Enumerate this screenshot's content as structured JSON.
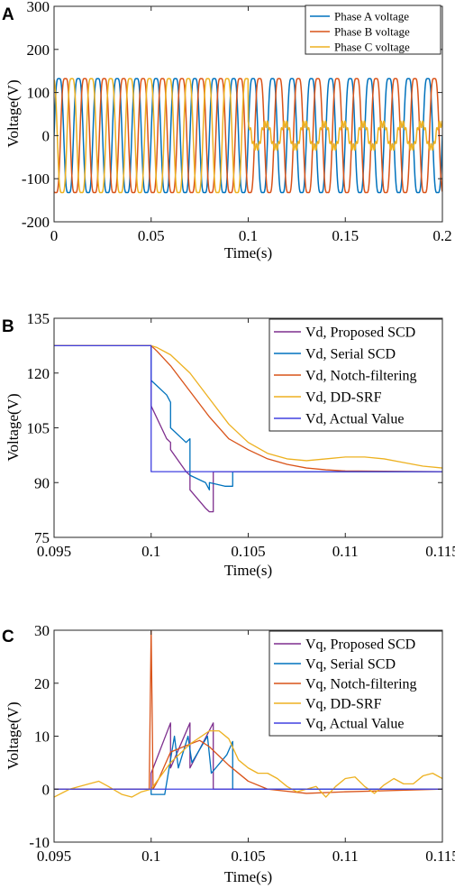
{
  "colors": {
    "phase_a": "#0072BD",
    "phase_b": "#D95319",
    "phase_c": "#EDB120",
    "proposed": "#7E2F8E",
    "serial": "#0072BD",
    "notch": "#D95319",
    "ddsrf": "#EDB120",
    "actual": "#4040E0"
  },
  "panels": [
    {
      "letter": "A",
      "ylabel": "Voltage(V)",
      "xlabel": "Time(s)",
      "xticks": [
        "0",
        "0.05",
        "0.1",
        "0.15",
        "0.2"
      ],
      "yticks": [
        "-200",
        "-100",
        "0",
        "100",
        "200",
        "300"
      ],
      "legend": [
        "Phase A voltage",
        "Phase B voltage",
        "Phase C voltage"
      ]
    },
    {
      "letter": "B",
      "ylabel": "Voltage(V)",
      "xlabel": "Time(s)",
      "xticks": [
        "0.095",
        "0.1",
        "0.105",
        "0.11",
        "0.115"
      ],
      "yticks": [
        "75",
        "90",
        "105",
        "120",
        "135"
      ],
      "legend": [
        "Vd, Proposed SCD",
        "Vd, Serial SCD",
        "Vd, Notch-filtering",
        "Vd, DD-SRF",
        "Vd, Actual Value"
      ]
    },
    {
      "letter": "C",
      "ylabel": "Voltage(V)",
      "xlabel": "Time(s)",
      "xticks": [
        "0.095",
        "0.1",
        "0.105",
        "0.11",
        "0.115"
      ],
      "yticks": [
        "-10",
        "0",
        "10",
        "20",
        "30"
      ],
      "legend": [
        "Vq, Proposed SCD",
        "Vq, Serial SCD",
        "Vq, Notch-filtering",
        "Vq, DD-SRF",
        "Vq, Actual Value"
      ]
    }
  ],
  "chart_data": [
    {
      "type": "line",
      "xlim": [
        0,
        0.2
      ],
      "ylim": [
        -200,
        300
      ],
      "grid": false,
      "legend_position": "top-right",
      "frequency_hz": 100,
      "series": [
        {
          "name": "Phase A voltage",
          "amplitude_before": 150,
          "amplitude_after": 150,
          "phase_deg": 0
        },
        {
          "name": "Phase B voltage",
          "amplitude_before": 150,
          "amplitude_after": 150,
          "phase_deg": -120
        },
        {
          "name": "Phase C voltage",
          "amplitude_before": 150,
          "amplitude_after": 30,
          "phase_deg": 120
        }
      ],
      "event_time": 0.1
    },
    {
      "type": "line",
      "xlim": [
        0.095,
        0.115
      ],
      "ylim": [
        75,
        135
      ],
      "grid": false,
      "legend_position": "top-right",
      "series": [
        {
          "name": "Vd, Proposed SCD",
          "x": [
            0.095,
            0.1,
            0.1,
            0.1008,
            0.101,
            0.101,
            0.1018,
            0.102,
            0.102,
            0.1028,
            0.103,
            0.103,
            0.1032,
            0.1032,
            0.115
          ],
          "y": [
            127.5,
            127.5,
            111,
            102,
            101,
            99,
            93,
            92,
            88,
            83,
            82,
            82,
            82,
            93,
            93
          ]
        },
        {
          "name": "Vd, Serial SCD",
          "x": [
            0.095,
            0.1,
            0.1,
            0.1008,
            0.101,
            0.101,
            0.1018,
            0.102,
            0.102,
            0.1028,
            0.103,
            0.103,
            0.1038,
            0.1042,
            0.1042,
            0.115
          ],
          "y": [
            127.5,
            127.5,
            118,
            114,
            112,
            105,
            101,
            102,
            92,
            90,
            88,
            90,
            89,
            89,
            93,
            93
          ]
        },
        {
          "name": "Vd, Notch-filtering",
          "x": [
            0.095,
            0.1,
            0.1003,
            0.101,
            0.102,
            0.103,
            0.104,
            0.105,
            0.106,
            0.107,
            0.108,
            0.109,
            0.11,
            0.112,
            0.115
          ],
          "y": [
            127.5,
            127.5,
            126,
            122,
            115,
            108,
            102,
            99,
            96.5,
            95,
            94,
            93.5,
            93.2,
            93.1,
            93
          ]
        },
        {
          "name": "Vd, DD-SRF",
          "x": [
            0.095,
            0.1,
            0.1003,
            0.101,
            0.102,
            0.103,
            0.104,
            0.105,
            0.106,
            0.107,
            0.108,
            0.109,
            0.11,
            0.111,
            0.112,
            0.113,
            0.114,
            0.115
          ],
          "y": [
            127.5,
            127.5,
            127,
            125,
            120,
            113,
            106,
            101,
            98,
            96.5,
            96,
            96.5,
            97,
            97,
            96.5,
            95.5,
            94.5,
            94
          ]
        },
        {
          "name": "Vd, Actual Value",
          "x": [
            0.095,
            0.1,
            0.1,
            0.115
          ],
          "y": [
            127.5,
            127.5,
            93,
            93
          ]
        }
      ]
    },
    {
      "type": "line",
      "xlim": [
        0.095,
        0.115
      ],
      "ylim": [
        -10,
        30
      ],
      "grid": false,
      "legend_position": "top-right",
      "series": [
        {
          "name": "Vq, Proposed SCD",
          "x": [
            0.095,
            0.1,
            0.1,
            0.101,
            0.101,
            0.102,
            0.102,
            0.1032,
            0.1032,
            0.115
          ],
          "y": [
            0,
            0,
            3,
            12.5,
            4,
            12.5,
            4,
            12.5,
            0,
            0
          ]
        },
        {
          "name": "Vq, Serial SCD",
          "x": [
            0.095,
            0.1,
            0.1,
            0.1007,
            0.1012,
            0.1014,
            0.1019,
            0.1021,
            0.1029,
            0.1031,
            0.1039,
            0.1042,
            0.1042,
            0.115
          ],
          "y": [
            0,
            0,
            -1,
            -1,
            10,
            4,
            10,
            5,
            10,
            3,
            6.5,
            9,
            0,
            0
          ]
        },
        {
          "name": "Vq, Notch-filtering",
          "x": [
            0.095,
            0.0999,
            0.1,
            0.1001,
            0.1004,
            0.101,
            0.102,
            0.1025,
            0.103,
            0.104,
            0.105,
            0.106,
            0.108,
            0.11,
            0.115
          ],
          "y": [
            0,
            0,
            30,
            0,
            2,
            7,
            8.5,
            9.2,
            8,
            4.5,
            1.5,
            0,
            -0.8,
            -0.5,
            0
          ]
        },
        {
          "name": "Vq, DD-SRF",
          "x": [
            0.095,
            0.0958,
            0.0968,
            0.0973,
            0.0978,
            0.0985,
            0.099,
            0.0995,
            0.1,
            0.1003,
            0.101,
            0.102,
            0.103,
            0.1035,
            0.104,
            0.1045,
            0.105,
            0.1055,
            0.106,
            0.1065,
            0.107,
            0.1075,
            0.108,
            0.1085,
            0.109,
            0.1095,
            0.11,
            0.1105,
            0.111,
            0.1115,
            0.112,
            0.1125,
            0.113,
            0.1135,
            0.114,
            0.1145,
            0.115
          ],
          "y": [
            -1.5,
            0,
            1,
            1.5,
            0.5,
            -1,
            -1.5,
            -0.5,
            0,
            1.5,
            5,
            8.5,
            11,
            11,
            9.5,
            5.5,
            4,
            3,
            3,
            2,
            0.5,
            -0.5,
            0,
            0.5,
            -1.5,
            0.5,
            2,
            2.3,
            0.5,
            -0.8,
            0.8,
            2,
            1,
            1,
            2.5,
            3,
            2
          ]
        },
        {
          "name": "Vq, Actual Value",
          "x": [
            0.095,
            0.115
          ],
          "y": [
            0,
            0
          ]
        }
      ]
    }
  ]
}
